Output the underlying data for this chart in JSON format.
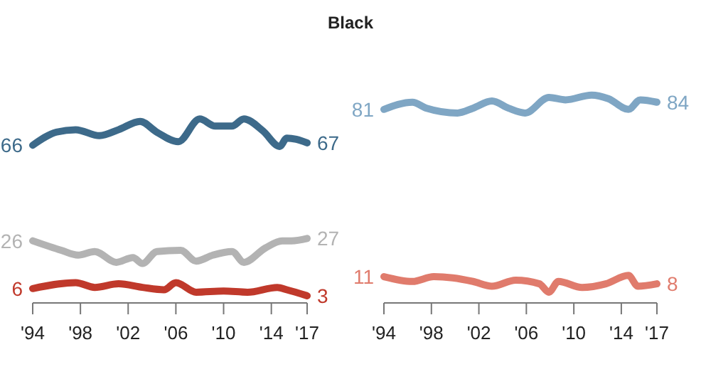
{
  "chart_data": [
    {
      "type": "other",
      "title": "Black"
    },
    {
      "type": "line",
      "tick_labels": "x",
      "xlim": [
        1994,
        2017
      ],
      "xticks": [
        {
          "value": 1994,
          "label": "'94"
        },
        {
          "value": 1998,
          "label": "'98"
        },
        {
          "value": 2002,
          "label": "'02"
        },
        {
          "value": 2006,
          "label": "'06"
        },
        {
          "value": 2010,
          "label": "'10"
        },
        {
          "value": 2014,
          "label": "'14"
        },
        {
          "value": 2017,
          "label": "'17"
        }
      ],
      "x": [
        1994,
        1996,
        1997.6,
        1999.6,
        2001.2,
        2003,
        2004.4,
        2006.2,
        2008,
        2009.3,
        2010.7,
        2011.7,
        2013.3,
        2014.7,
        2015.3,
        2016.1,
        2017
      ],
      "series": [
        {
          "color": "#3d6a8a",
          "values": [
            66,
            71.5,
            72.5,
            70,
            72.5,
            76,
            71.5,
            67.5,
            77,
            74,
            74,
            77,
            72,
            65.5,
            69,
            68.5,
            67
          ],
          "value_labels": [
            "66",
            null,
            null,
            null,
            null,
            null,
            null,
            null,
            null,
            null,
            null,
            null,
            null,
            null,
            null,
            null,
            "67"
          ]
        },
        {
          "color": "#b3b3b3",
          "x": [
            1994,
            1996.4,
            1997.8,
            1999.2,
            2001,
            2002.4,
            2003.2,
            2004.4,
            2006.4,
            2007.7,
            2009.1,
            2010.7,
            2011.7,
            2013.5,
            2014.9,
            2015.7,
            2017
          ],
          "values": [
            26,
            22,
            20,
            21.5,
            17,
            19,
            16.5,
            21.5,
            22,
            17.5,
            20,
            21.5,
            17,
            23,
            26,
            26,
            27
          ],
          "value_labels": [
            "26",
            null,
            null,
            null,
            null,
            null,
            null,
            null,
            null,
            null,
            null,
            null,
            null,
            null,
            null,
            null,
            "27"
          ]
        },
        {
          "color": "#c0392b",
          "x": [
            1994,
            1997.6,
            1999.2,
            2001.2,
            2003.2,
            2005,
            2006,
            2007.7,
            2010,
            2012,
            2014.5,
            2015.3,
            2017
          ],
          "values": [
            6,
            8.5,
            6.5,
            8,
            6.5,
            5.5,
            8.5,
            4.5,
            5,
            4.5,
            6.5,
            5.5,
            3
          ],
          "value_labels": [
            "6",
            null,
            null,
            null,
            null,
            null,
            null,
            null,
            null,
            null,
            null,
            null,
            "3"
          ]
        }
      ]
    },
    {
      "type": "line",
      "tick_labels": "x",
      "xlim": [
        1994,
        2017
      ],
      "xticks": [
        {
          "value": 1994,
          "label": "'94"
        },
        {
          "value": 1998,
          "label": "'98"
        },
        {
          "value": 2002,
          "label": "'02"
        },
        {
          "value": 2006,
          "label": "'06"
        },
        {
          "value": 2010,
          "label": "'10"
        },
        {
          "value": 2014,
          "label": "'14"
        },
        {
          "value": 2017,
          "label": "'17"
        }
      ],
      "series": [
        {
          "color": "#7fa6c4",
          "x": [
            1994,
            1996.4,
            1997.6,
            2000.2,
            2001.5,
            2003.1,
            2004.5,
            2005.9,
            2007.9,
            2009.3,
            2011.5,
            2012.9,
            2014.6,
            2015.6,
            2017
          ],
          "values": [
            81,
            84,
            81.5,
            79.5,
            81.5,
            84.5,
            81.5,
            79.5,
            86,
            85,
            87,
            85.5,
            81,
            85,
            84
          ],
          "value_labels": [
            "81",
            null,
            null,
            null,
            null,
            null,
            null,
            null,
            null,
            null,
            null,
            null,
            null,
            null,
            "84"
          ]
        },
        {
          "color": "#e07b6c",
          "x": [
            1994,
            1996.4,
            1998.2,
            1999.8,
            2001.5,
            2003.1,
            2005.1,
            2007.1,
            2007.9,
            2008.7,
            2010.7,
            2012.7,
            2014.6,
            2015.4,
            2017
          ],
          "values": [
            11,
            9,
            11,
            10.5,
            9,
            7,
            9.5,
            8,
            4.5,
            9,
            6.5,
            8,
            11.5,
            7,
            8
          ],
          "value_labels": [
            "11",
            null,
            null,
            null,
            null,
            null,
            null,
            null,
            null,
            null,
            null,
            null,
            null,
            null,
            "8"
          ]
        }
      ]
    }
  ]
}
